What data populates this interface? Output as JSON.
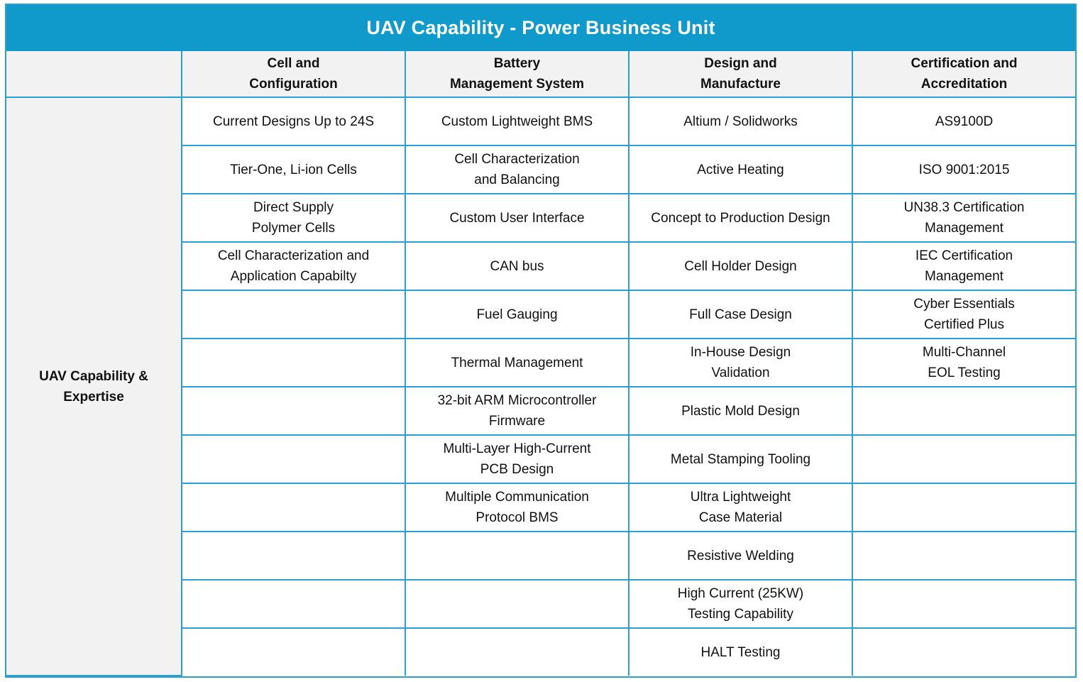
{
  "title": "UAV Capability - Power Business Unit",
  "row_header": "UAV Capability &\nExpertise",
  "columns": [
    "Cell and\nConfiguration",
    "Battery\nManagement System",
    "Design and\nManufacture",
    "Certification and\nAccreditation"
  ],
  "rows": [
    [
      "Current Designs Up to 24S",
      "Custom Lightweight BMS",
      "Altium / Solidworks",
      "AS9100D"
    ],
    [
      "Tier-One, Li-ion Cells",
      "Cell Characterization\nand Balancing",
      "Active Heating",
      "ISO 9001:2015"
    ],
    [
      "Direct Supply\nPolymer Cells",
      "Custom User Interface",
      "Concept to Production Design",
      "UN38.3 Certification\nManagement"
    ],
    [
      "Cell Characterization and\nApplication Capabilty",
      "CAN bus",
      "Cell Holder Design",
      "IEC Certification\nManagement"
    ],
    [
      "",
      "Fuel Gauging",
      "Full Case Design",
      "Cyber Essentials\nCertified Plus"
    ],
    [
      "",
      "Thermal Management",
      "In-House Design\nValidation",
      "Multi-Channel\nEOL Testing"
    ],
    [
      "",
      "32-bit ARM Microcontroller\nFirmware",
      "Plastic Mold Design",
      ""
    ],
    [
      "",
      "Multi-Layer High-Current\nPCB Design",
      "Metal Stamping Tooling",
      ""
    ],
    [
      "",
      "Multiple Communication\nProtocol BMS",
      "Ultra Lightweight\nCase Material",
      ""
    ],
    [
      "",
      "",
      "Resistive Welding",
      ""
    ],
    [
      "",
      "",
      "High Current (25KW)\nTesting Capability",
      ""
    ],
    [
      "",
      "",
      "HALT Testing",
      ""
    ]
  ]
}
